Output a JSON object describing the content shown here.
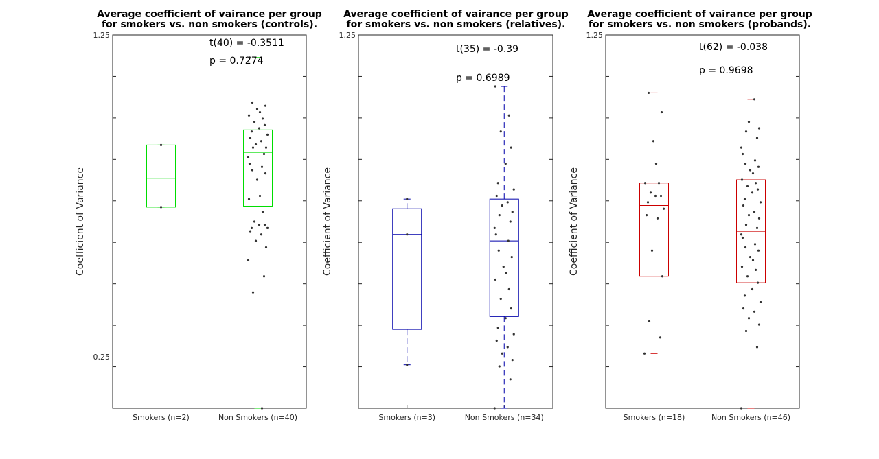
{
  "figure": {
    "background": "#ffffff"
  },
  "chart_data": [
    {
      "type": "boxplot",
      "title_lines": [
        "Average coefficient of vairance per group",
        "for smokers vs. non smokers (controls)."
      ],
      "ylabel": "Coefficient of Variance",
      "yticks": [
        0.25,
        1.25
      ],
      "ytick_labels": [
        "0.25",
        "1.25"
      ],
      "ylim": [
        0.09,
        1.25
      ],
      "color": "#00dd00",
      "annotations": [
        "t(40) = -0.3511",
        "p = 0.7274"
      ],
      "categories": [
        "Smokers (n=2)",
        "Non Smokers (n=40)"
      ],
      "boxes": [
        {
          "q1": 0.715,
          "median": 0.805,
          "q3": 0.908,
          "whisker_low": 0.715,
          "whisker_high": 0.908
        },
        {
          "q1": 0.718,
          "median": 0.885,
          "q3": 0.955,
          "whisker_low": 0.09,
          "whisker_high": 1.18
        }
      ],
      "points": [
        [
          0.715,
          0.908
        ],
        [
          0.55,
          0.5,
          0.45,
          0.59,
          0.61,
          0.63,
          0.64,
          0.65,
          0.65,
          0.66,
          0.66,
          0.67,
          0.7,
          0.74,
          0.75,
          0.8,
          0.82,
          0.83,
          0.84,
          0.85,
          0.87,
          0.88,
          0.9,
          0.9,
          0.91,
          0.92,
          0.93,
          0.94,
          0.95,
          0.96,
          0.97,
          0.98,
          0.99,
          1.0,
          1.01,
          1.02,
          1.03,
          1.04,
          0.09,
          1.18
        ]
      ]
    },
    {
      "type": "boxplot",
      "title_lines": [
        "Average coefficient of vairance per group",
        "for smokers vs. non smokers (relatives)."
      ],
      "ylabel": "Coefficient of Variance",
      "yticks": [
        1.25
      ],
      "ytick_labels": [
        "1.25"
      ],
      "ylim": [
        0.09,
        1.25
      ],
      "color": "#0000aa",
      "annotations": [
        "t(35) = -0.39",
        "p = 0.6989"
      ],
      "categories": [
        "Smokers (n=3)",
        "Non Smokers (n=34)"
      ],
      "boxes": [
        {
          "q1": 0.335,
          "median": 0.63,
          "q3": 0.71,
          "whisker_low": 0.225,
          "whisker_high": 0.74
        },
        {
          "q1": 0.375,
          "median": 0.61,
          "q3": 0.74,
          "whisker_low": 0.09,
          "whisker_high": 1.09
        }
      ],
      "points": [
        [
          0.225,
          0.63,
          0.74
        ],
        [
          0.09,
          0.18,
          0.22,
          0.24,
          0.26,
          0.28,
          0.3,
          0.32,
          0.34,
          0.37,
          0.4,
          0.43,
          0.46,
          0.49,
          0.51,
          0.53,
          0.56,
          0.58,
          0.61,
          0.63,
          0.65,
          0.67,
          0.69,
          0.7,
          0.72,
          0.73,
          0.75,
          0.77,
          0.79,
          0.85,
          0.9,
          0.95,
          1.0,
          1.09
        ]
      ]
    },
    {
      "type": "boxplot",
      "title_lines": [
        "Average coefficient of vairance per group",
        "for smokers vs. non smokers (probands)."
      ],
      "ylabel": "Coefficient of Variance",
      "yticks": [
        1.25
      ],
      "ytick_labels": [
        "1.25"
      ],
      "ylim": [
        0.09,
        1.25
      ],
      "color": "#cc0000",
      "annotations": [
        "t(62) = -0.038",
        "p = 0.9698"
      ],
      "categories": [
        "Smokers (n=18)",
        "Non Smokers (n=46)"
      ],
      "boxes": [
        {
          "q1": 0.5,
          "median": 0.72,
          "q3": 0.79,
          "whisker_low": 0.26,
          "whisker_high": 1.07
        },
        {
          "q1": 0.48,
          "median": 0.64,
          "q3": 0.8,
          "whisker_low": 0.09,
          "whisker_high": 1.05
        }
      ],
      "points": [
        [
          0.26,
          0.31,
          0.36,
          0.5,
          0.58,
          0.68,
          0.69,
          0.71,
          0.73,
          0.75,
          0.75,
          0.76,
          0.79,
          0.79,
          0.85,
          0.92,
          1.01,
          1.07
        ],
        [
          0.09,
          0.28,
          0.33,
          0.35,
          0.37,
          0.39,
          0.4,
          0.42,
          0.44,
          0.46,
          0.48,
          0.5,
          0.52,
          0.53,
          0.55,
          0.56,
          0.58,
          0.59,
          0.6,
          0.62,
          0.63,
          0.65,
          0.66,
          0.68,
          0.69,
          0.7,
          0.72,
          0.73,
          0.74,
          0.76,
          0.77,
          0.78,
          0.79,
          0.8,
          0.82,
          0.83,
          0.84,
          0.85,
          0.86,
          0.88,
          0.9,
          0.93,
          0.95,
          0.96,
          0.98,
          1.05
        ]
      ]
    }
  ]
}
